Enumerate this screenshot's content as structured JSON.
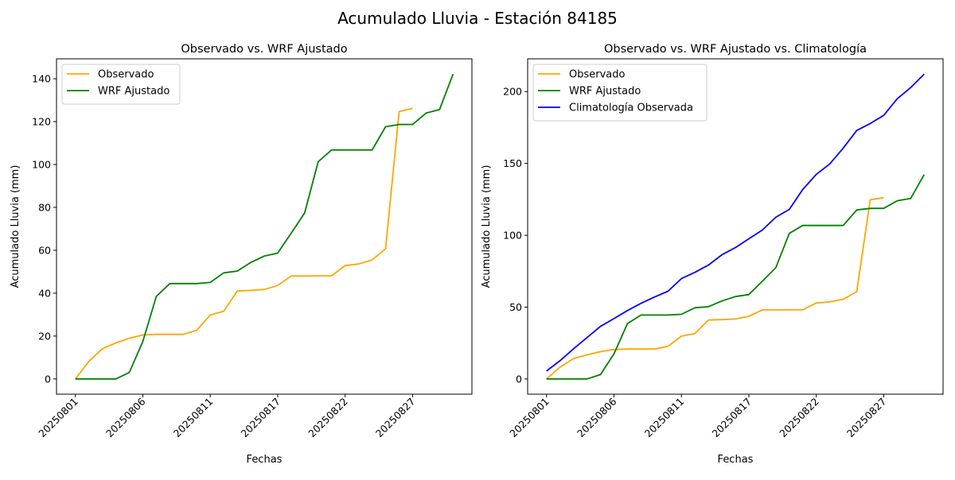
{
  "chart_data": {
    "suptitle": "Acumulado Lluvia - Estación 84185",
    "dates": [
      "20250801",
      "20250802",
      "20250803",
      "20250804",
      "20250805",
      "20250806",
      "20250807",
      "20250808",
      "20250809",
      "20250810",
      "20250811",
      "20250812",
      "20250813",
      "20250814",
      "20250816",
      "20250817",
      "20250818",
      "20250819",
      "20250820",
      "20250821",
      "20250822",
      "20250823",
      "20250824",
      "20250825",
      "20250826",
      "20250827",
      "20250828",
      "20250829",
      "20250830"
    ],
    "xticks": [
      "20250801",
      "20250806",
      "20250811",
      "20250817",
      "20250822",
      "20250827"
    ],
    "series_values": {
      "observado": [
        0,
        8.2,
        14.1,
        16.8,
        19,
        20.5,
        20.8,
        20.8,
        20.8,
        22.7,
        29.8,
        31.6,
        41,
        41.3,
        41.7,
        43.6,
        48,
        48,
        48.1,
        48.1,
        52.9,
        53.6,
        55.5,
        60.7,
        124.7,
        126.2
      ],
      "wrf": [
        0,
        0,
        0,
        0,
        3,
        17.5,
        38.5,
        44.5,
        44.5,
        44.5,
        45,
        49.5,
        50.3,
        54.3,
        57.3,
        58.7,
        68,
        77.4,
        101.3,
        106.8,
        106.8,
        106.8,
        106.8,
        117.6,
        118.7,
        118.7,
        124,
        125.6,
        142.2
      ],
      "clima": [
        5.5,
        12.7,
        21,
        28.8,
        36.6,
        42,
        47.6,
        52.6,
        57,
        61,
        69.8,
        74.2,
        79.2,
        86.4,
        91.4,
        97.5,
        103.6,
        112.5,
        118,
        131.9,
        142.4,
        149.6,
        160.7,
        172.9,
        177.8,
        183.4,
        195,
        202.8,
        212.2
      ]
    },
    "charts": [
      {
        "type": "line",
        "title": "Observado vs. WRF Ajustado",
        "xlabel": "Fechas",
        "ylabel": "Acumulado Lluvia (mm)",
        "ylim": [
          -7.1,
          149.3
        ],
        "yticks": [
          0,
          20,
          40,
          60,
          80,
          100,
          120,
          140
        ],
        "legend": "top-left",
        "series": [
          {
            "name": "Observado",
            "key": "observado",
            "color": "#FFA500"
          },
          {
            "name": "WRF Ajustado",
            "key": "wrf",
            "color": "#008000"
          }
        ]
      },
      {
        "type": "line",
        "title": "Observado vs. WRF Ajustado vs. Climatología",
        "xlabel": "Fechas",
        "ylabel": "Acumulado Lluvia (mm)",
        "ylim": [
          -10.6,
          222.8
        ],
        "yticks": [
          0,
          50,
          100,
          150,
          200
        ],
        "legend": "top-left",
        "series": [
          {
            "name": "Observado",
            "key": "observado",
            "color": "#FFA500"
          },
          {
            "name": "WRF Ajustado",
            "key": "wrf",
            "color": "#008000"
          },
          {
            "name": "Climatología Observada",
            "key": "clima",
            "color": "#0000FF"
          }
        ]
      }
    ]
  }
}
